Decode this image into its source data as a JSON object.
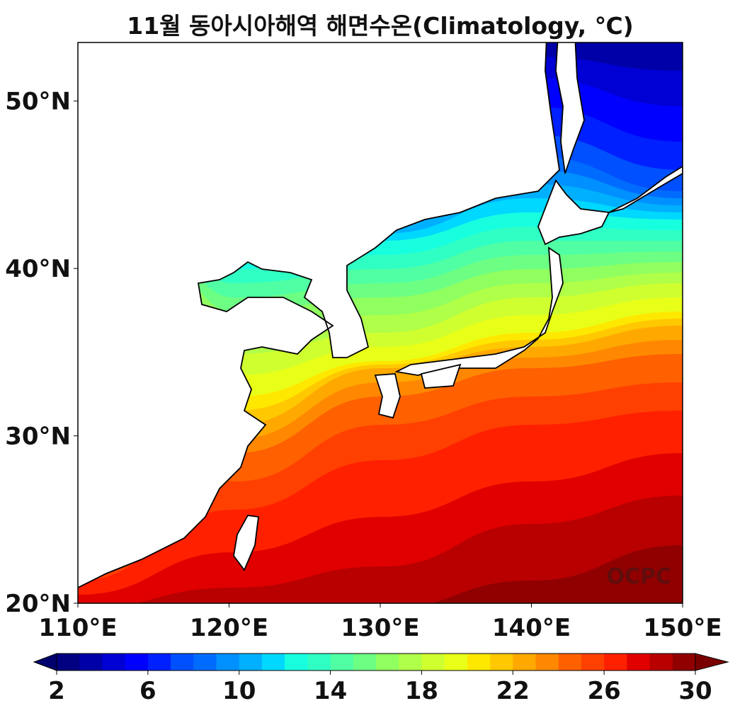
{
  "title": "11월 동아시아해역 해면수온(Climatology, ℃)",
  "watermark": "OCPC",
  "map": {
    "lon_range": [
      110,
      150
    ],
    "lat_range": [
      20,
      53.5
    ],
    "lon_ticks": [
      "110°E",
      "120°E",
      "130°E",
      "140°E",
      "150°E"
    ],
    "lat_ticks": [
      "50°N",
      "40°N",
      "30°N",
      "20°N"
    ]
  },
  "colorbar": {
    "min": 2,
    "max": 30,
    "step": 1,
    "extend": "both",
    "tick_labels": [
      "2",
      "6",
      "10",
      "14",
      "18",
      "22",
      "26",
      "30"
    ],
    "under_color": "#00006e",
    "over_color": "#7a0000",
    "colors": [
      "#000080",
      "#0000a8",
      "#0000d4",
      "#0000ff",
      "#0020ff",
      "#0050ff",
      "#006cff",
      "#0090ff",
      "#00b0ff",
      "#00d8ff",
      "#18ffe0",
      "#30ffc4",
      "#50ffa4",
      "#6cff84",
      "#90ff60",
      "#b0ff48",
      "#d0ff30",
      "#e8ff18",
      "#ffe800",
      "#ffc800",
      "#ffa800",
      "#ff8800",
      "#ff6000",
      "#ff4000",
      "#ff2000",
      "#e00000",
      "#b80000",
      "#900000"
    ]
  }
}
